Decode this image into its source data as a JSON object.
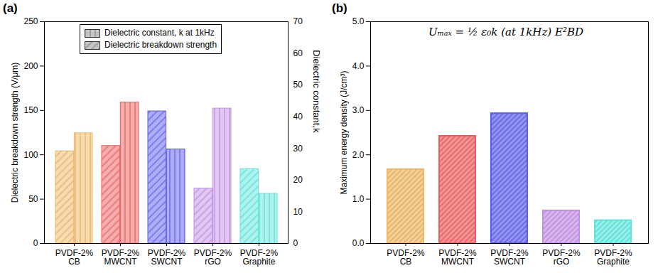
{
  "chart_data": [
    {
      "type": "bar",
      "title": "(a)",
      "categories": [
        "PVDF-2%\nCB",
        "PVDF-2%\nMWCNT",
        "PVDF-2%\nSWCNT",
        "PVDF-2%\nrGO",
        "PVDF-2%\nGraphite"
      ],
      "colors": [
        "#f0b860",
        "#f05a5a",
        "#5a5af0",
        "#c48ee8",
        "#5ae8e0"
      ],
      "ylabel": "Dielectric breakdown strength (V/μm)",
      "y2label": "Dielectric constant,k",
      "ylim": [
        0,
        250
      ],
      "yticks": [
        0,
        50,
        100,
        150,
        200,
        250
      ],
      "y2lim": [
        0,
        70
      ],
      "y2ticks": [
        0,
        10,
        20,
        30,
        40,
        50,
        60,
        70
      ],
      "legend": "top",
      "series": [
        {
          "name": "Dielectric constant, k at 1kHz",
          "axis": "y2",
          "values": [
            34.8,
            44.5,
            29.7,
            42.6,
            15.7
          ]
        },
        {
          "name": "Dielectric breakdown strength",
          "values": [
            104,
            110,
            149,
            62,
            84
          ]
        }
      ]
    },
    {
      "type": "bar",
      "title": "(b)",
      "categories": [
        "PVDF-2%\nCB",
        "PVDF-2%\nMWCNT",
        "PVDF-2%\nSWCNT",
        "PVDF-2%\nrGO",
        "PVDF-2%\nGraphite"
      ],
      "colors": [
        "#f0b860",
        "#f05a5a",
        "#5a5af0",
        "#c48ee8",
        "#5ae8e0"
      ],
      "ylabel": "Maximum energy density (J/cm³)",
      "annotation": "Uₘₐₓ = ½ ε₀k (at 1kHz) E²BD",
      "ylim": [
        0,
        5
      ],
      "yticks": [
        0,
        1,
        2,
        3,
        4,
        5
      ],
      "values": [
        1.67,
        2.42,
        2.93,
        0.74,
        0.52
      ]
    }
  ]
}
